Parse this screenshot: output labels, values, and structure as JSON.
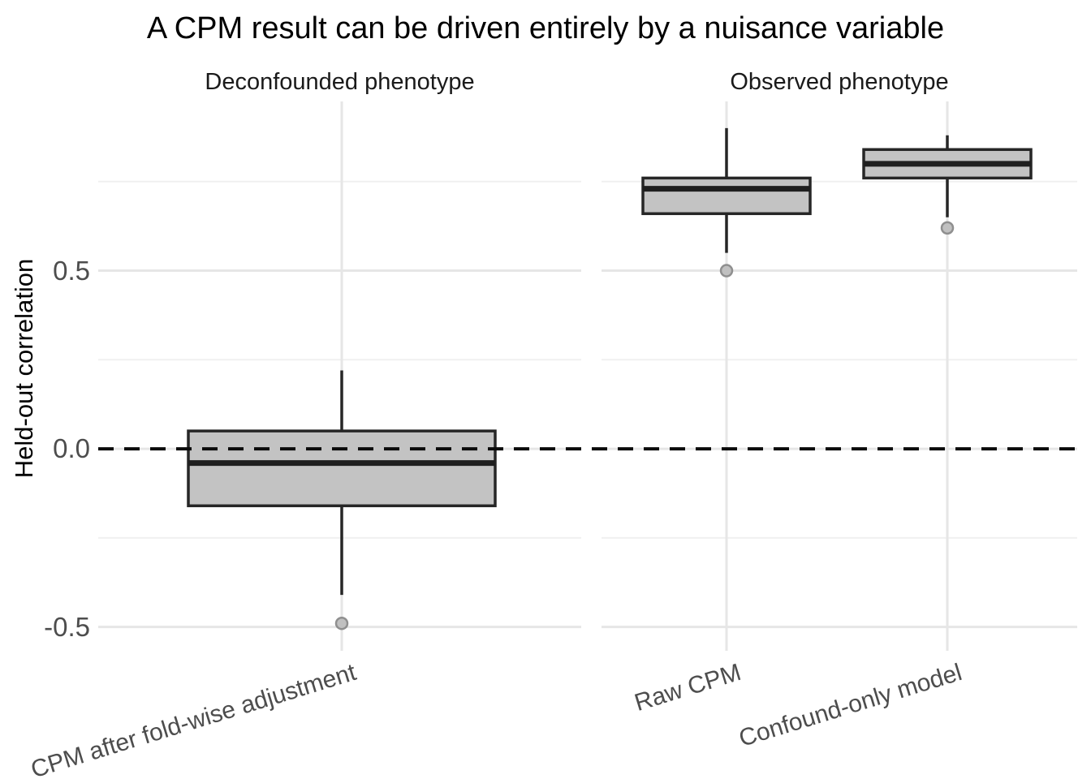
{
  "title": "A CPM result can be driven entirely by a nuisance variable",
  "ylabel": "Held-out correlation",
  "chart_data": {
    "type": "boxplot",
    "facets": [
      {
        "label": "Deconfounded phenotype",
        "categories": [
          "CPM after fold-wise adjustment"
        ],
        "boxes": [
          {
            "category": "CPM after fold-wise adjustment",
            "whisker_low": -0.41,
            "q1": -0.16,
            "median": -0.04,
            "q3": 0.05,
            "whisker_high": 0.22,
            "outliers": [
              -0.49
            ]
          }
        ]
      },
      {
        "label": "Observed phenotype",
        "categories": [
          "Raw CPM",
          "Confound-only model"
        ],
        "boxes": [
          {
            "category": "Raw CPM",
            "whisker_low": 0.55,
            "q1": 0.66,
            "median": 0.73,
            "q3": 0.76,
            "whisker_high": 0.9,
            "outliers": [
              0.5
            ]
          },
          {
            "category": "Confound-only model",
            "whisker_low": 0.65,
            "q1": 0.76,
            "median": 0.8,
            "q3": 0.84,
            "whisker_high": 0.88,
            "outliers": [
              0.62
            ]
          }
        ]
      }
    ],
    "yticks": [
      {
        "value": 0.5,
        "label": "0.5"
      },
      {
        "value": 0.0,
        "label": "0.0"
      },
      {
        "value": -0.5,
        "label": "-0.5"
      }
    ],
    "grid_minor_y": [
      0.75,
      0.25,
      -0.25
    ],
    "ylim": [
      -0.567,
      0.975
    ],
    "reference_line": {
      "y": 0.0,
      "style": "dashed"
    },
    "grid": true,
    "legend": "none",
    "colors": {
      "background": "#ffffff",
      "box_fill": "#c3c3c3",
      "box_stroke": "#262626",
      "median_stroke": "#1f1f1f",
      "whisker_stroke": "#262626",
      "outlier_fill": "#c0c0c0",
      "outlier_stroke": "#8f8f8f",
      "grid_major": "#e6e6e6",
      "grid_minor": "#f0f0f0",
      "reference_line": "#0a0a0a",
      "axis_text": "#4d4d4d",
      "title_text": "#000000"
    }
  }
}
